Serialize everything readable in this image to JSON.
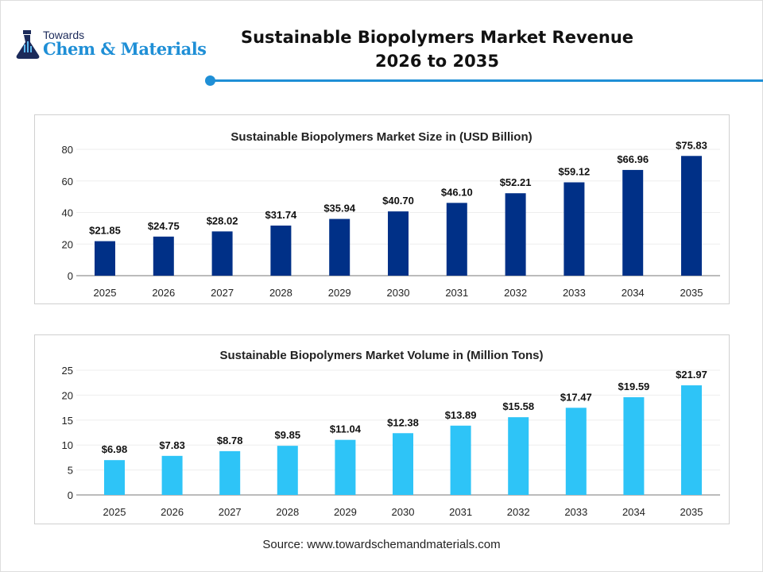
{
  "header": {
    "logo_top": "Towards",
    "logo_main": "Chem & Materials",
    "title_line1": "Sustainable Biopolymers Market Revenue",
    "title_line2": "2026 to 2035",
    "accent": "#1f8fd6"
  },
  "chart_data": [
    {
      "type": "bar",
      "title": "Sustainable Biopolymers Market Size in (USD Billion)",
      "categories": [
        "2025",
        "2026",
        "2027",
        "2028",
        "2029",
        "2030",
        "2031",
        "2032",
        "2033",
        "2034",
        "2035"
      ],
      "values": [
        21.85,
        24.75,
        28.02,
        31.74,
        35.94,
        40.7,
        46.1,
        52.21,
        59.12,
        66.96,
        75.83
      ],
      "labels": [
        "$21.85",
        "$24.75",
        "$28.02",
        "$31.74",
        "$35.94",
        "$40.70",
        "$46.10",
        "$52.21",
        "$59.12",
        "$66.96",
        "$75.83"
      ],
      "ylim": [
        0,
        80
      ],
      "yticks": [
        "0",
        "20",
        "40",
        "60",
        "80"
      ],
      "grid": true,
      "color": "#003087"
    },
    {
      "type": "bar",
      "title": "Sustainable Biopolymers Market Volume in (Million Tons)",
      "categories": [
        "2025",
        "2026",
        "2027",
        "2028",
        "2029",
        "2030",
        "2031",
        "2032",
        "2033",
        "2034",
        "2035"
      ],
      "values": [
        6.98,
        7.83,
        8.78,
        9.85,
        11.04,
        12.38,
        13.89,
        15.58,
        17.47,
        19.59,
        21.97
      ],
      "labels": [
        "$6.98",
        "$7.83",
        "$8.78",
        "$9.85",
        "$11.04",
        "$12.38",
        "$13.89",
        "$15.58",
        "$17.47",
        "$19.59",
        "$21.97"
      ],
      "ylim": [
        0,
        25
      ],
      "yticks": [
        "0",
        "5",
        "10",
        "15",
        "20",
        "25"
      ],
      "grid": true,
      "color": "#2ec4f7"
    }
  ],
  "footer": {
    "source": "Source: www.towardschemandmaterials.com"
  }
}
